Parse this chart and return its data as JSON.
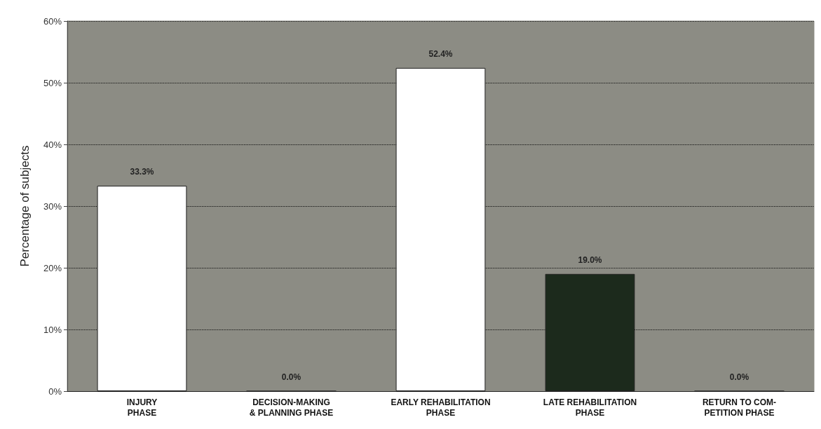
{
  "chart_data": {
    "type": "bar",
    "ylabel": "Percentage of subjects",
    "categories": [
      "INJURY\nPHASE",
      "DECISION-MAKING\n& PLANNING PHASE",
      "EARLY REHABILITATION\nPHASE",
      "LATE REHABILITATION\nPHASE",
      "RETURN TO COM-\nPETITION PHASE"
    ],
    "values": [
      33.3,
      0,
      52.4,
      19.0,
      0
    ],
    "value_labels": [
      "33.3%",
      "0.0%",
      "52.4%",
      "19.0%",
      "0.0%"
    ],
    "colors": [
      "#ffffff",
      "#ffffff",
      "#ffffff",
      "#1c2a1c",
      "#ffffff"
    ],
    "ylim": [
      0,
      60
    ],
    "yticks": [
      {
        "value": 0,
        "label": "0%"
      },
      {
        "value": 10,
        "label": "10%"
      },
      {
        "value": 20,
        "label": "20%"
      },
      {
        "value": 30,
        "label": "30%"
      },
      {
        "value": 40,
        "label": "40%"
      },
      {
        "value": 50,
        "label": "50%"
      },
      {
        "value": 60,
        "label": "60%"
      }
    ],
    "grid": "y"
  }
}
